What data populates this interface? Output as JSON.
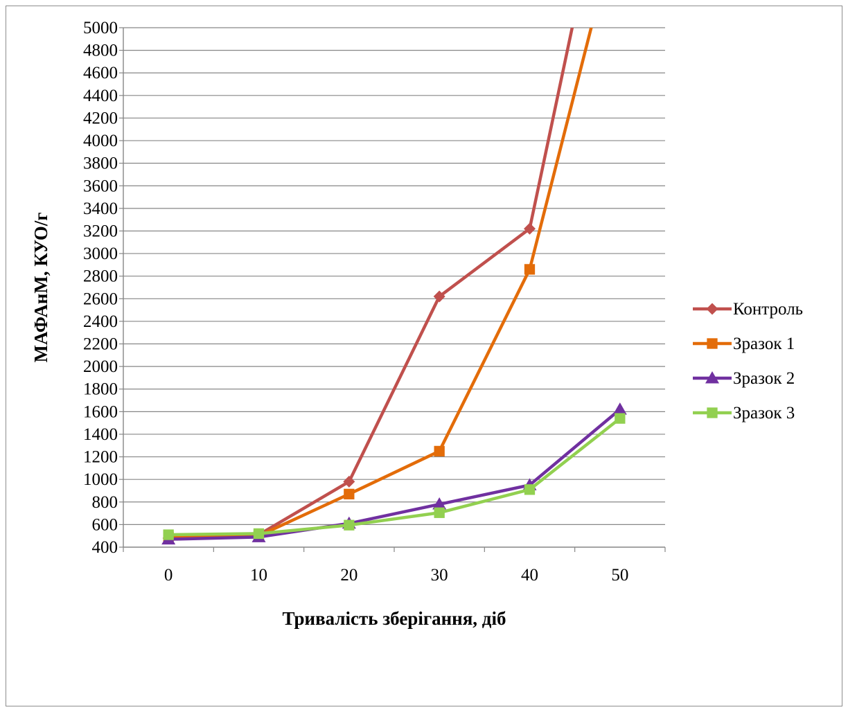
{
  "chart_data": {
    "type": "line",
    "title": "",
    "xlabel": "Тривалість зберігання, діб",
    "ylabel": "МАФАнМ, КУО/г",
    "categories": [
      "0",
      "10",
      "20",
      "30",
      "40",
      "50"
    ],
    "ylim": [
      400,
      5000
    ],
    "yticks": [
      400,
      600,
      800,
      1000,
      1200,
      1400,
      1600,
      1800,
      2000,
      2200,
      2400,
      2600,
      2800,
      3000,
      3200,
      3400,
      3600,
      3800,
      4000,
      4200,
      4400,
      4600,
      4800,
      5000
    ],
    "grid": true,
    "legend_position": "right",
    "series": [
      {
        "name": "Контроль",
        "values": [
          480,
          510,
          980,
          2620,
          3220,
          7000
        ],
        "color": "#c0504d",
        "marker": "diamond"
      },
      {
        "name": "Зразок 1",
        "values": [
          490,
          500,
          870,
          1250,
          2860,
          6000
        ],
        "color": "#e36c09",
        "marker": "square"
      },
      {
        "name": "Зразок 2",
        "values": [
          470,
          490,
          610,
          780,
          950,
          1620
        ],
        "color": "#7030a0",
        "marker": "triangle"
      },
      {
        "name": "Зразок 3",
        "values": [
          510,
          520,
          595,
          705,
          910,
          1540
        ],
        "color": "#92d050",
        "marker": "square"
      }
    ]
  }
}
